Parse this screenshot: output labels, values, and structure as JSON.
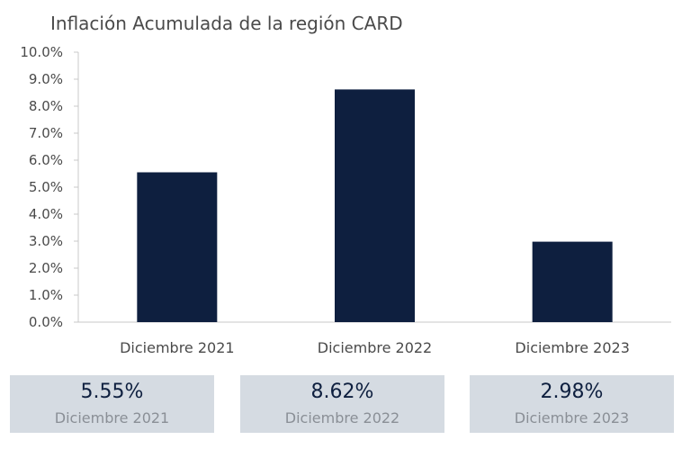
{
  "chart_data": {
    "type": "bar",
    "title": "Inflación Acumulada de la región CARD",
    "categories": [
      "Diciembre 2021",
      "Diciembre 2022",
      "Diciembre 2023"
    ],
    "values": [
      5.55,
      8.62,
      2.98
    ],
    "ylim": [
      0,
      10
    ],
    "yticks": [
      "0.0%",
      "1.0%",
      "2.0%",
      "3.0%",
      "4.0%",
      "5.0%",
      "6.0%",
      "7.0%",
      "8.0%",
      "9.0%",
      "10.0%"
    ],
    "bar_color": "#0e1f3f",
    "grid": false,
    "legend": "none"
  },
  "summary": [
    {
      "value": "5.55%",
      "label": "Diciembre 2021"
    },
    {
      "value": "8.62%",
      "label": "Diciembre 2022"
    },
    {
      "value": "2.98%",
      "label": "Diciembre 2023"
    }
  ],
  "colors": {
    "bar": "#0e1f3f",
    "summary_background": "#d5dbe2",
    "summary_value": "#0e1f3f",
    "summary_label": "#8a8f96"
  }
}
